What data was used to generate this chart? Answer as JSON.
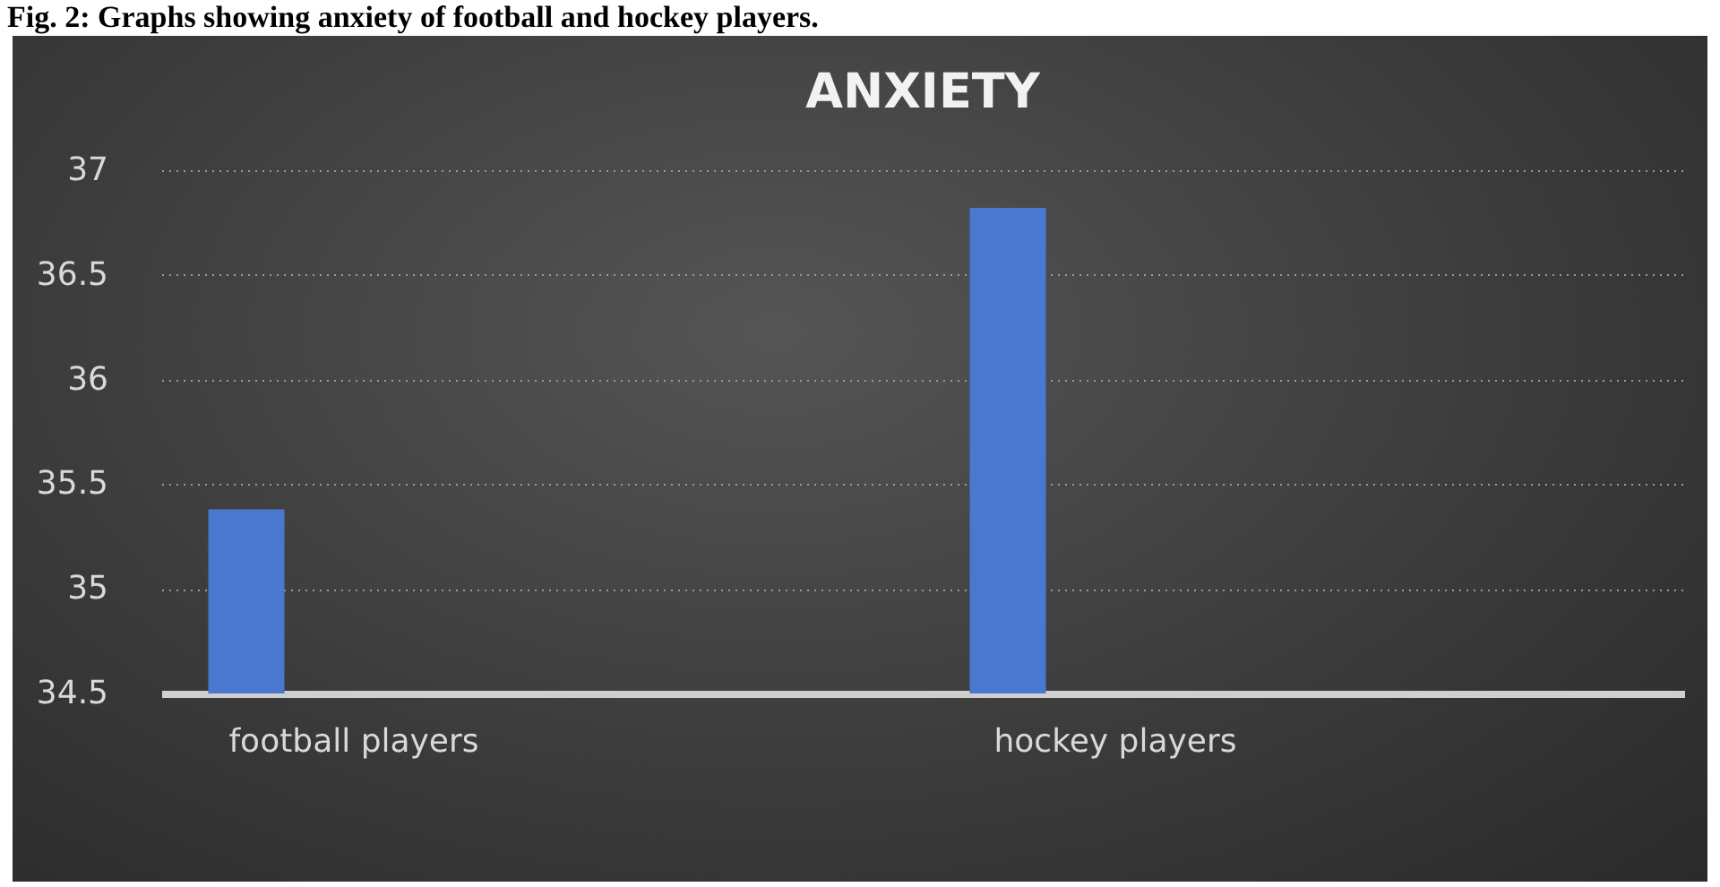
{
  "chart_data": {
    "type": "bar",
    "title": "ANXIETY",
    "annotations": [
      "Fig. 2: Graphs showing anxiety of football and hockey players."
    ],
    "categories": [
      "football players",
      "hockey players"
    ],
    "values": [
      35.38,
      36.82
    ],
    "color": "#4a77cf",
    "ylim": [
      34.5,
      37
    ],
    "yticks": [
      34.5,
      35,
      35.5,
      36,
      36.5,
      37
    ],
    "grid": "y"
  }
}
